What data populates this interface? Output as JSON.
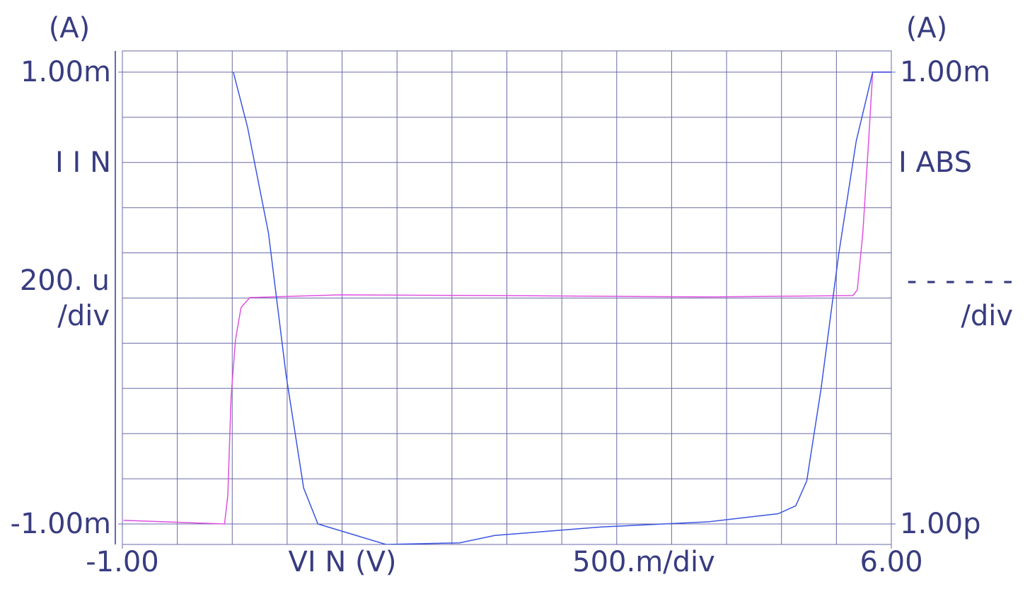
{
  "chart_data": {
    "type": "line",
    "x_label": "VI N (V)",
    "x_div": "500.m/div",
    "y_unit": "(A)",
    "y_name": "I I N",
    "y_div_value": "200. u",
    "y_div": "/div",
    "y2_unit": "(A)",
    "y2_name": "I ABS",
    "y2_div_value": "- - - - - -",
    "y2_div": "/div",
    "xlim": [
      -1,
      6
    ],
    "ylim": [
      -0.001,
      0.001
    ],
    "y2lim": [
      1e-12,
      0.001
    ],
    "y2_log": true,
    "xticks": [
      {
        "value": -1,
        "label": "-1.00"
      },
      {
        "value": 6,
        "label": "6.00"
      }
    ],
    "yticks": [
      {
        "value": 0.001,
        "label": "1.00m"
      },
      {
        "value": -0.001,
        "label": "-1.00m"
      }
    ],
    "y2ticks": [
      {
        "value": 0.001,
        "label": "1.00m"
      },
      {
        "value": 1e-12,
        "label": "1.00p"
      }
    ],
    "xgrid": [
      -1,
      -0.5,
      0,
      0.5,
      1,
      1.5,
      2,
      2.5,
      3,
      3.5,
      4,
      4.5,
      5,
      5.5,
      6
    ],
    "ygrid": [
      -0.001,
      -0.0008,
      -0.0006,
      -0.0004,
      -0.0002,
      0,
      0.0002,
      0.0004,
      0.0006,
      0.0008,
      0.001
    ],
    "grid": true,
    "series": [
      {
        "name": "I I N",
        "color": "#e050e0",
        "axis": "y",
        "x": [
          -0.99,
          -0.07,
          -0.04,
          -0.01,
          0.03,
          0.08,
          0.16,
          0.98,
          2.4,
          4.33,
          5.65,
          5.69,
          5.74,
          5.79,
          5.83,
          6.0
        ],
        "values": [
          -0.000984,
          -0.001,
          -0.000872,
          -0.000434,
          -0.000184,
          -4.2e-05,
          2e-06,
          1.4e-05,
          1.1e-05,
          5e-06,
          1.1e-05,
          3.6e-05,
          0.000286,
          0.00067,
          0.001,
          0.001
        ]
      },
      {
        "name": "I ABS",
        "color": "#3a55e0",
        "axis": "y2",
        "x": [
          0.01,
          0.14,
          0.33,
          0.49,
          0.65,
          0.78,
          1.4,
          2.07,
          2.39,
          3.36,
          4.33,
          4.97,
          5.13,
          5.23,
          5.36,
          5.52,
          5.68,
          5.83,
          6.0
        ],
        "values": [
          0.001,
          7.9e-05,
          6.2e-07,
          9.3e-10,
          5.2e-12,
          1e-12,
          3.9e-13,
          4.2e-13,
          5.9e-13,
          8.7e-13,
          1.1e-12,
          1.6e-12,
          2.3e-12,
          7.2e-12,
          4.9e-10,
          2.3e-07,
          4.2e-05,
          0.001,
          0.001
        ]
      }
    ]
  }
}
